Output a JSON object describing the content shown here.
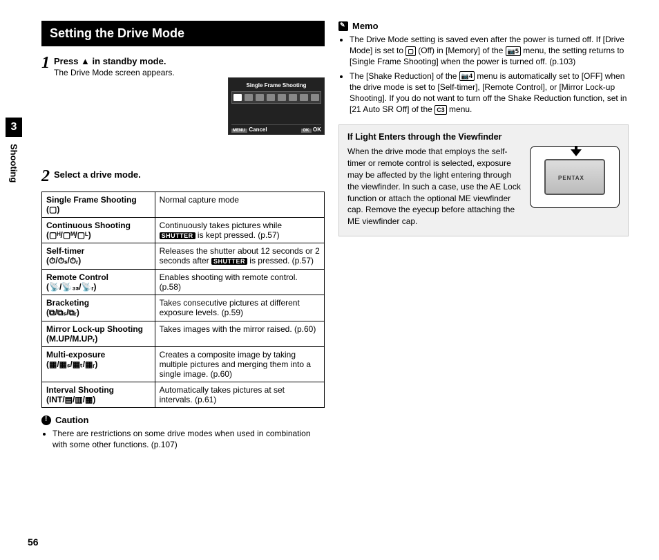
{
  "page_number": "56",
  "chapter_number": "3",
  "section_name": "Shooting",
  "heading": "Setting the Drive Mode",
  "steps": [
    {
      "num": "1",
      "title_pre": "Press ",
      "title_post": " in standby mode.",
      "desc": "The Drive Mode screen appears."
    },
    {
      "num": "2",
      "title_pre": "Select a drive mode.",
      "title_post": "",
      "desc": ""
    }
  ],
  "screen": {
    "title": "Single Frame Shooting",
    "cancel": "Cancel",
    "ok": "OK"
  },
  "modes": [
    {
      "name_line1": "Single Frame Shooting",
      "symbols": "(▢)",
      "desc": "Normal capture mode"
    },
    {
      "name_line1": "Continuous Shooting",
      "symbols": "(▢ᴴ/▢ᴹ/▢ᴸ)",
      "desc_pre": "Continuously takes pictures while ",
      "desc_mid": "SHUTTER",
      "desc_post": " is kept pressed. (p.57)"
    },
    {
      "name_line1": "Self-timer",
      "symbols": "(⏱/⏱ₛ/⏱ᵣ)",
      "desc_pre": "Releases the shutter about 12 seconds or 2 seconds after ",
      "desc_mid": "SHUTTER",
      "desc_post": " is pressed. (p.57)"
    },
    {
      "name_line1": "Remote Control",
      "symbols": "(📡/📡₃ₛ/📡ᵣ)",
      "desc": "Enables shooting with remote control. (p.58)"
    },
    {
      "name_line1": "Bracketing",
      "symbols": "(⧉/⧉ₛ/⧉ᵣ)",
      "desc": "Takes consecutive pictures at different exposure levels. (p.59)"
    },
    {
      "name_line1": "Mirror Lock-up Shooting",
      "symbols": "(M.UP/M.UPᵣ)",
      "desc": "Takes images with the mirror raised. (p.60)"
    },
    {
      "name_line1": "Multi-exposure",
      "symbols": "(▦/▦ₛ/▦ₜ/▦ᵣ)",
      "desc": "Creates a composite image by taking multiple pictures and merging them into a single image. (p.60)"
    },
    {
      "name_line1": "Interval Shooting",
      "symbols": "(INT/▤/▥/▦)",
      "desc": "Automatically takes pictures at set intervals. (p.61)"
    }
  ],
  "caution": {
    "label": "Caution",
    "items": [
      "There are restrictions on some drive modes when used in combination with some other functions. (p.107)"
    ]
  },
  "memo": {
    "label": "Memo",
    "items": [
      {
        "pre": "The Drive Mode setting is saved even after the power is turned off. If [Drive Mode] is set to ",
        "icon1": "▢",
        "mid1": " (Off) in [Memory] of the ",
        "icon2": "📷5",
        "post": " menu, the setting returns to [Single Frame Shooting] when the power is turned off. (p.103)"
      },
      {
        "pre": "The [Shake Reduction] of the ",
        "icon1": "📷4",
        "mid1": " menu is automatically set to [OFF] when the drive mode is set to [Self-timer], [Remote Control], or [Mirror Lock-up Shooting]. If you do not want to turn off the Shake Reduction function, set in [21 Auto SR Off] of the ",
        "icon2": "C3",
        "post": " menu."
      }
    ]
  },
  "callout": {
    "title": "If Light Enters through the Viewfinder",
    "brand": "PENTAX",
    "body": "When the drive mode that employs the self-timer or remote control is selected, exposure may be affected by the light entering through the viewfinder. In such a case, use the AE Lock function or attach the optional ME viewfinder cap. Remove the eyecup before attaching the ME viewfinder cap."
  }
}
